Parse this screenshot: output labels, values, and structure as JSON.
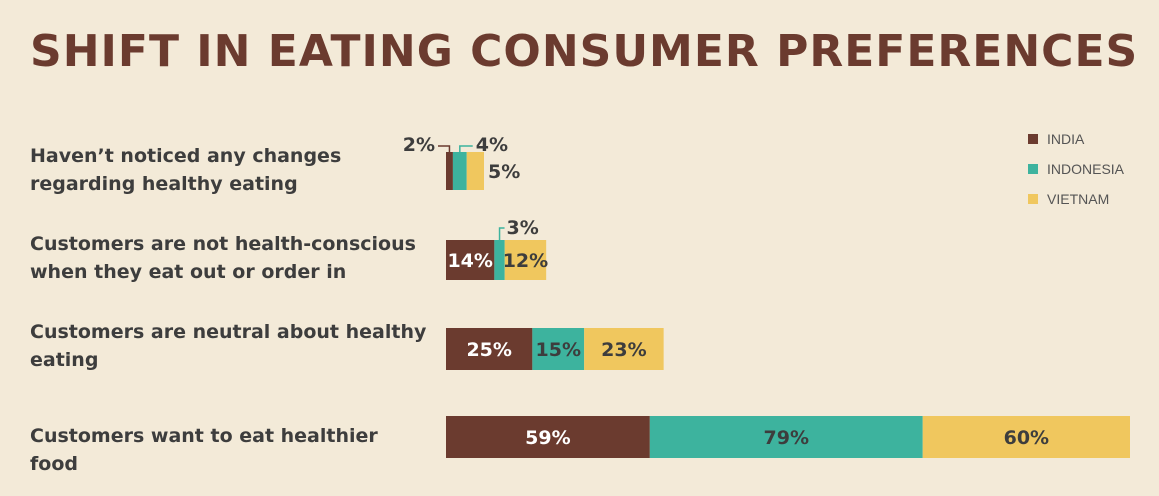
{
  "colors": {
    "india": "#6b3b2f",
    "indonesia": "#3db39e",
    "vietnam": "#f0c75e",
    "background": "#f3ead8",
    "title": "#6b3b2f"
  },
  "chart_data": {
    "type": "bar",
    "orientation": "horizontal",
    "stacked": true,
    "title": "SHIFT IN EATING CONSUMER PREFERENCES",
    "categories": [
      "Haven’t noticed any changes regarding healthy eating",
      "Customers are not health-conscious when they eat out or order in",
      "Customers are neutral about healthy eating",
      "Customers want to eat healthier food"
    ],
    "series": [
      {
        "name": "INDIA",
        "values": [
          2,
          14,
          25,
          59
        ],
        "labels": [
          "2%",
          "14%",
          "25%",
          "59%"
        ]
      },
      {
        "name": "INDONESIA",
        "values": [
          4,
          3,
          15,
          79
        ],
        "labels": [
          "4%",
          "3%",
          "15%",
          "79%"
        ]
      },
      {
        "name": "VIETNAM",
        "values": [
          5,
          12,
          23,
          60
        ],
        "labels": [
          "5%",
          "12%",
          "23%",
          "60%"
        ]
      }
    ],
    "legend_position": "top-right",
    "grid": false
  }
}
